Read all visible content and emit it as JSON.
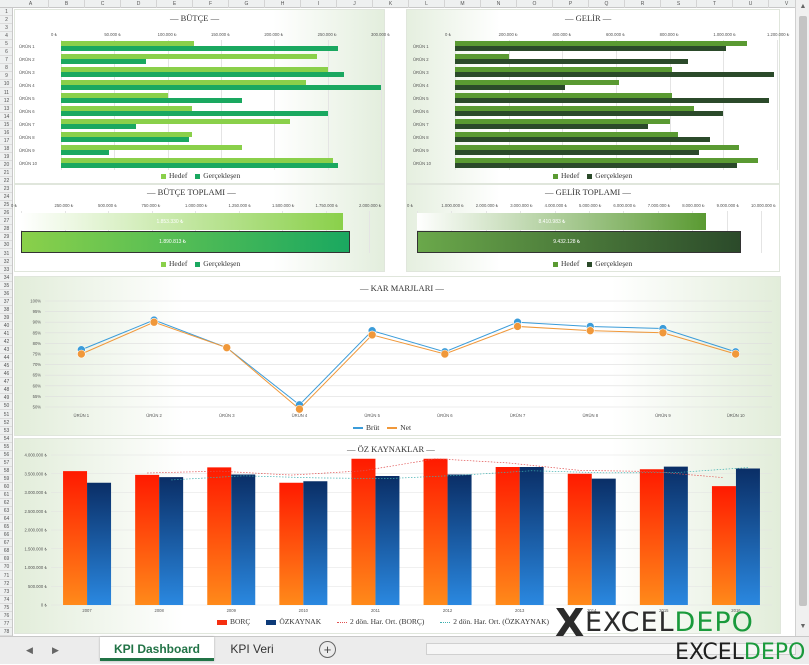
{
  "colors": {
    "hedef": "#8ad04a",
    "gercek": "#1aa860",
    "gelir_hedef": "#5a9a32",
    "gelir_gercek": "#2b4a2a",
    "brut": "#3b9cd9",
    "net": "#f0983a",
    "borc": "#f52f10",
    "ozkaynak": "#0d3a78"
  },
  "columns": [
    "A",
    "B",
    "C",
    "D",
    "E",
    "F",
    "G",
    "H",
    "I",
    "J",
    "K",
    "L",
    "M",
    "N",
    "O",
    "P",
    "Q",
    "R",
    "S",
    "T",
    "U",
    "V"
  ],
  "products": [
    "ÜRÜN 1",
    "ÜRÜN 2",
    "ÜRÜN 3",
    "ÜRÜN 4",
    "ÜRÜN 5",
    "ÜRÜN 6",
    "ÜRÜN 7",
    "ÜRÜN 8",
    "ÜRÜN 9",
    "ÜRÜN 10"
  ],
  "butce": {
    "title": "— BÜTÇE —",
    "ticks": [
      "0 ₺",
      "50.000 ₺",
      "100.000 ₺",
      "150.000 ₺",
      "200.000 ₺",
      "250.000 ₺",
      "300.000 ₺"
    ],
    "max": 300000,
    "hedef": [
      125000,
      240000,
      250000,
      230000,
      100000,
      123000,
      215000,
      123000,
      170000,
      255000
    ],
    "gercek": [
      260000,
      80000,
      265000,
      300000,
      170000,
      250000,
      70000,
      120000,
      45000,
      260000
    ],
    "legend": [
      "Hedef",
      "Gerçekleşen"
    ]
  },
  "gelir": {
    "title": "— GELİR —",
    "ticks": [
      "0 ₺",
      "200.000 ₺",
      "400.000 ₺",
      "600.000 ₺",
      "800.000 ₺",
      "1.000.000 ₺",
      "1.200.000 ₺"
    ],
    "max": 1200000,
    "hedef": [
      1090000,
      200000,
      810000,
      610000,
      810000,
      890000,
      800000,
      830000,
      1060000,
      1130000
    ],
    "gercek": [
      1010000,
      870000,
      1190000,
      410000,
      1170000,
      1000000,
      720000,
      950000,
      910000,
      1050000
    ],
    "legend": [
      "Hedef",
      "Gerçekleşen"
    ]
  },
  "butce_toplami": {
    "title": "— BÜTÇE TOPLAMI —",
    "ticks": [
      "0 ₺",
      "250.000 ₺",
      "500.000 ₺",
      "750.000 ₺",
      "1.000.000 ₺",
      "1.250.000 ₺",
      "1.500.000 ₺",
      "1.750.000 ₺",
      "2.000.000 ₺"
    ],
    "max": 2000000,
    "hedef": 1853330,
    "gercek": 1890813,
    "hedef_label": "1.853.330 ₺",
    "gercek_label": "1.890.813 ₺",
    "legend": [
      "Hedef",
      "Gerçekleşen"
    ]
  },
  "gelir_toplami": {
    "title": "— GELİR TOPLAMI —",
    "ticks": [
      "0 ₺",
      "1.000.000 ₺",
      "2.000.000 ₺",
      "3.000.000 ₺",
      "4.000.000 ₺",
      "5.000.000 ₺",
      "6.000.000 ₺",
      "7.000.000 ₺",
      "8.000.000 ₺",
      "9.000.000 ₺",
      "10.000.000 ₺"
    ],
    "max": 10000000,
    "hedef": 8410983,
    "gercek": 9432128,
    "hedef_label": "8.410.983 ₺",
    "gercek_label": "9.432.128 ₺",
    "legend": [
      "Hedef",
      "Gerçekleşen"
    ]
  },
  "kar": {
    "title": "— KAR MARJLARI —",
    "ticks": [
      "50%",
      "55%",
      "60%",
      "65%",
      "70%",
      "75%",
      "80%",
      "85%",
      "90%",
      "95%",
      "100%"
    ],
    "min": 50,
    "max": 100,
    "brut": [
      77,
      91,
      78,
      51,
      86,
      76,
      90,
      88,
      87,
      76
    ],
    "net": [
      75,
      90,
      78,
      49,
      84,
      75,
      88,
      86,
      85,
      75
    ],
    "legend": [
      "Brüt",
      "Net"
    ]
  },
  "oz": {
    "title": "— ÖZ KAYNAKLAR —",
    "ticks": [
      "0 ₺",
      "500.000 ₺",
      "1.000.000 ₺",
      "1.500.000 ₺",
      "2.000.000 ₺",
      "2.500.000 ₺",
      "3.000.000 ₺",
      "3.500.000 ₺",
      "4.000.000 ₺"
    ],
    "max": 4000000,
    "years": [
      "2007",
      "2008",
      "2009",
      "2010",
      "2011",
      "2012",
      "2013",
      "2014",
      "2015",
      "2016"
    ],
    "borc": [
      3570000,
      3470000,
      3670000,
      3260000,
      3900000,
      3900000,
      3680000,
      3500000,
      3620000,
      3170000
    ],
    "ozkaynak": [
      3260000,
      3410000,
      3480000,
      3300000,
      3440000,
      3480000,
      3680000,
      3370000,
      3690000,
      3640000
    ],
    "legend": [
      "BORÇ",
      "ÖZKAYNAK",
      "2 dön. Har. Ort. (BORÇ)",
      "2 dön. Har. Ort. (ÖZKAYNAK)"
    ]
  },
  "tabs": {
    "dashboard": "KPI Dashboard",
    "veri": "KPI Veri",
    "add": "+",
    "prev": "◀",
    "next": "▶"
  },
  "logo": {
    "mark": "X",
    "word1_a": "EXCEL",
    "word1_b": "DEPO",
    "word2_a": "EXCEL",
    "word2_b": "DEPO"
  }
}
